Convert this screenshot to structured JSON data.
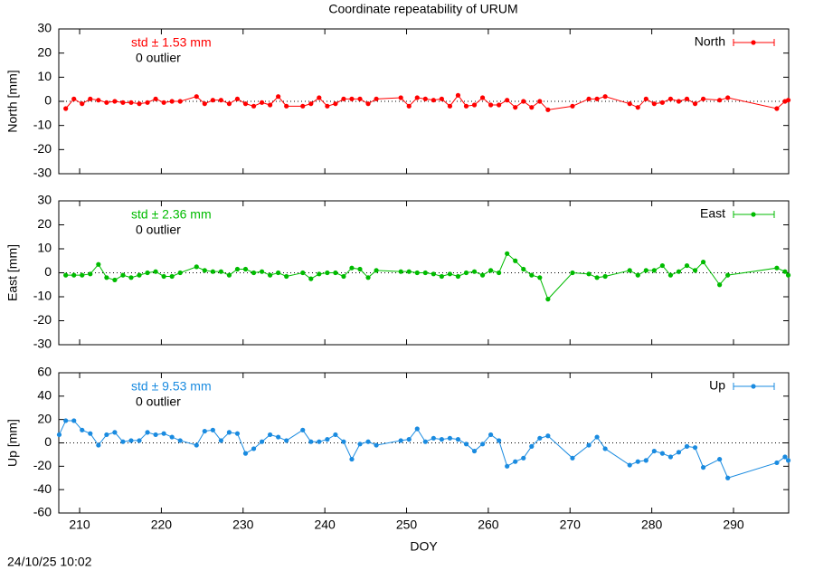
{
  "title": "Coordinate repeatability of URUM",
  "timestamp": "24/10/25 10:02",
  "chart_data": [
    {
      "type": "line",
      "y_label": "North [mm]",
      "annotations": [
        "std ± 1.53 mm",
        "0 outlier"
      ],
      "xlim": [
        207.45,
        296.75
      ],
      "xticks": [
        210,
        220,
        230,
        240,
        250,
        260,
        270,
        280,
        290
      ],
      "ylim": [
        -30,
        30
      ],
      "yticks": [
        -30,
        -20,
        -10,
        0,
        10,
        20,
        30
      ],
      "x": [
        208.3,
        209.3,
        210.3,
        211.3,
        212.3,
        213.3,
        214.3,
        215.3,
        216.3,
        217.3,
        218.3,
        219.3,
        220.3,
        221.3,
        222.3,
        224.3,
        225.3,
        226.3,
        227.3,
        228.3,
        229.3,
        230.3,
        231.3,
        232.3,
        233.3,
        234.3,
        235.3,
        237.3,
        238.3,
        239.3,
        240.3,
        241.3,
        242.3,
        243.3,
        244.3,
        245.3,
        246.3,
        249.3,
        250.3,
        251.3,
        252.3,
        253.3,
        254.3,
        255.3,
        256.3,
        257.3,
        258.3,
        259.3,
        260.3,
        261.3,
        262.3,
        263.3,
        264.3,
        265.3,
        266.3,
        267.3,
        270.3,
        272.3,
        273.3,
        274.3,
        277.3,
        278.3,
        279.3,
        280.3,
        281.3,
        282.3,
        283.3,
        284.3,
        285.3,
        286.3,
        288.3,
        289.3,
        295.3,
        296.3,
        296.7
      ],
      "series": [
        {
          "name": "North",
          "color": "#ff0000",
          "values": [
            -3,
            1,
            -1,
            1,
            0.5,
            -0.5,
            0,
            -0.5,
            -0.5,
            -1,
            -0.5,
            1,
            -0.5,
            0,
            0,
            2,
            -1,
            0.5,
            0.5,
            -1,
            1,
            -1,
            -2,
            -0.5,
            -1.5,
            2,
            -2,
            -2,
            -1,
            1.5,
            -2,
            -1,
            1,
            1,
            1,
            -1,
            1,
            1.5,
            -2,
            1.5,
            1,
            0.5,
            1,
            -2,
            2.5,
            -2,
            -1.5,
            1.5,
            -1.5,
            -1.5,
            0.5,
            -2.5,
            0,
            -2.5,
            0,
            -3.5,
            -2,
            1,
            1,
            2,
            -1,
            -2.5,
            1,
            -1,
            -0.5,
            1,
            0,
            1,
            -1,
            1,
            0.5,
            1.5,
            -3,
            0,
            0.5
          ]
        }
      ]
    },
    {
      "type": "line",
      "y_label": "East [mm]",
      "annotations": [
        "std ± 2.36 mm",
        "0 outlier"
      ],
      "xlim": [
        207.45,
        296.75
      ],
      "xticks": [
        210,
        220,
        230,
        240,
        250,
        260,
        270,
        280,
        290
      ],
      "ylim": [
        -30,
        30
      ],
      "yticks": [
        -30,
        -20,
        -10,
        0,
        10,
        20,
        30
      ],
      "x": [
        208.3,
        209.3,
        210.3,
        211.3,
        212.3,
        213.3,
        214.3,
        215.3,
        216.3,
        217.3,
        218.3,
        219.3,
        220.3,
        221.3,
        222.3,
        224.3,
        225.3,
        226.3,
        227.3,
        228.3,
        229.3,
        230.3,
        231.3,
        232.3,
        233.3,
        234.3,
        235.3,
        237.3,
        238.3,
        239.3,
        240.3,
        241.3,
        242.3,
        243.3,
        244.3,
        245.3,
        246.3,
        249.3,
        250.3,
        251.3,
        252.3,
        253.3,
        254.3,
        255.3,
        256.3,
        257.3,
        258.3,
        259.3,
        260.3,
        261.3,
        262.3,
        263.3,
        264.3,
        265.3,
        266.3,
        267.3,
        270.3,
        272.3,
        273.3,
        274.3,
        277.3,
        278.3,
        279.3,
        280.3,
        281.3,
        282.3,
        283.3,
        284.3,
        285.3,
        286.3,
        288.3,
        289.3,
        295.3,
        296.3,
        296.7
      ],
      "series": [
        {
          "name": "East",
          "color": "#00bb00",
          "values": [
            -1,
            -1,
            -1,
            -0.5,
            3.5,
            -2,
            -3,
            -1,
            -2,
            -1,
            0,
            0.5,
            -1.5,
            -1.5,
            0,
            2.5,
            1,
            0.5,
            0.5,
            -1,
            1.5,
            1.5,
            0,
            0.5,
            -1,
            0,
            -1.5,
            0,
            -2.5,
            -0.5,
            0,
            0,
            -1.5,
            2,
            1.5,
            -2,
            1,
            0.5,
            0.5,
            0,
            0,
            -0.5,
            -1.5,
            -0.5,
            -1.5,
            0,
            0.5,
            -1,
            1,
            0,
            8,
            5,
            1.5,
            -1,
            -2,
            -11,
            0,
            -0.5,
            -2,
            -1.5,
            1,
            -1,
            1,
            1,
            3,
            -1,
            0.5,
            3,
            1,
            4.5,
            -5,
            -1,
            2,
            0.5,
            -1
          ]
        }
      ]
    },
    {
      "type": "line",
      "y_label": "Up [mm]",
      "x_label": "DOY",
      "annotations": [
        "std ± 9.53 mm",
        "0 outlier"
      ],
      "xlim": [
        207.45,
        296.75
      ],
      "xticks": [
        210,
        220,
        230,
        240,
        250,
        260,
        270,
        280,
        290
      ],
      "ylim": [
        -60,
        60
      ],
      "yticks": [
        -60,
        -40,
        -20,
        0,
        20,
        40,
        60
      ],
      "x": [
        207.5,
        208.3,
        209.3,
        210.3,
        211.3,
        212.3,
        213.3,
        214.3,
        215.3,
        216.3,
        217.3,
        218.3,
        219.3,
        220.3,
        221.3,
        222.3,
        224.3,
        225.3,
        226.3,
        227.3,
        228.3,
        229.3,
        230.3,
        231.3,
        232.3,
        233.3,
        234.3,
        235.3,
        237.3,
        238.3,
        239.3,
        240.3,
        241.3,
        242.3,
        243.3,
        244.3,
        245.3,
        246.3,
        249.3,
        250.3,
        251.3,
        252.3,
        253.3,
        254.3,
        255.3,
        256.3,
        257.3,
        258.3,
        259.3,
        260.3,
        261.3,
        262.3,
        263.3,
        264.3,
        265.3,
        266.3,
        267.3,
        270.3,
        272.3,
        273.3,
        274.3,
        277.3,
        278.3,
        279.3,
        280.3,
        281.3,
        282.3,
        283.3,
        284.3,
        285.3,
        286.3,
        288.3,
        289.3,
        295.3,
        296.3,
        296.7
      ],
      "series": [
        {
          "name": "Up",
          "color": "#1a8be0",
          "values": [
            7,
            19,
            19,
            11,
            8,
            -2,
            7,
            9,
            1,
            2,
            2,
            9,
            7,
            8,
            5,
            2,
            -2,
            10,
            11,
            2,
            9,
            8,
            -9,
            -5,
            1,
            7,
            5,
            2,
            11,
            1,
            1,
            3,
            7,
            1,
            -14,
            -1,
            1,
            -2,
            2,
            3,
            12,
            1,
            4,
            3,
            4,
            3,
            -1,
            -7,
            -1,
            7,
            2,
            -20,
            -16,
            -13,
            -3,
            4,
            6,
            -13,
            -2,
            5,
            -5,
            -19,
            -16,
            -15,
            -7,
            -9,
            -12,
            -8,
            -3,
            -4,
            -21,
            -14,
            -30,
            -17,
            -12,
            -15
          ]
        }
      ]
    }
  ]
}
